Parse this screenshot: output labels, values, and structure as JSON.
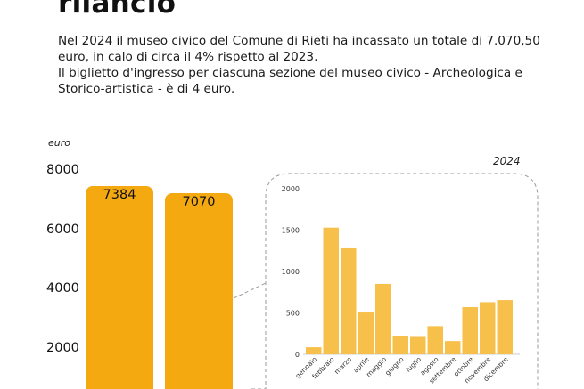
{
  "heading": "rilancio",
  "paragraphs": [
    "Nel 2024 il museo civico del Comune di Rieti ha incassato un totale di 7.070,50",
    "euro, in calo di circa il 4% rispetto al 2023.",
    "Il biglietto d'ingresso per ciascuna sezione del museo civico - Archeologica e",
    "Storico-artistica - è di 4 euro."
  ],
  "colors": {
    "annual_bar": "#f5a911",
    "monthly_bar": "#f7c04a",
    "outline": "#9a9a9a"
  },
  "chart_data": [
    {
      "type": "bar",
      "ylabel": "euro",
      "yticks": [
        "8000",
        "6000",
        "4000",
        "2000"
      ],
      "ylim": [
        0,
        8000
      ],
      "categories": [
        "",
        ""
      ],
      "values": [
        7384,
        7070
      ],
      "data_labels": [
        "7384",
        "7070"
      ]
    },
    {
      "type": "bar",
      "annotation": "2024",
      "categories": [
        "gennaio",
        "febbraio",
        "marzo",
        "aprile",
        "maggio",
        "giugno",
        "luglio",
        "agosto",
        "settembre",
        "ottobre",
        "novembre",
        "dicembre"
      ],
      "values": [
        85,
        1530,
        1280,
        505,
        850,
        220,
        210,
        340,
        160,
        570,
        630,
        655
      ],
      "yticks": [
        "2000",
        "1500",
        "1000",
        "500",
        "0"
      ],
      "ylim": [
        0,
        2000
      ],
      "grid": false
    }
  ]
}
